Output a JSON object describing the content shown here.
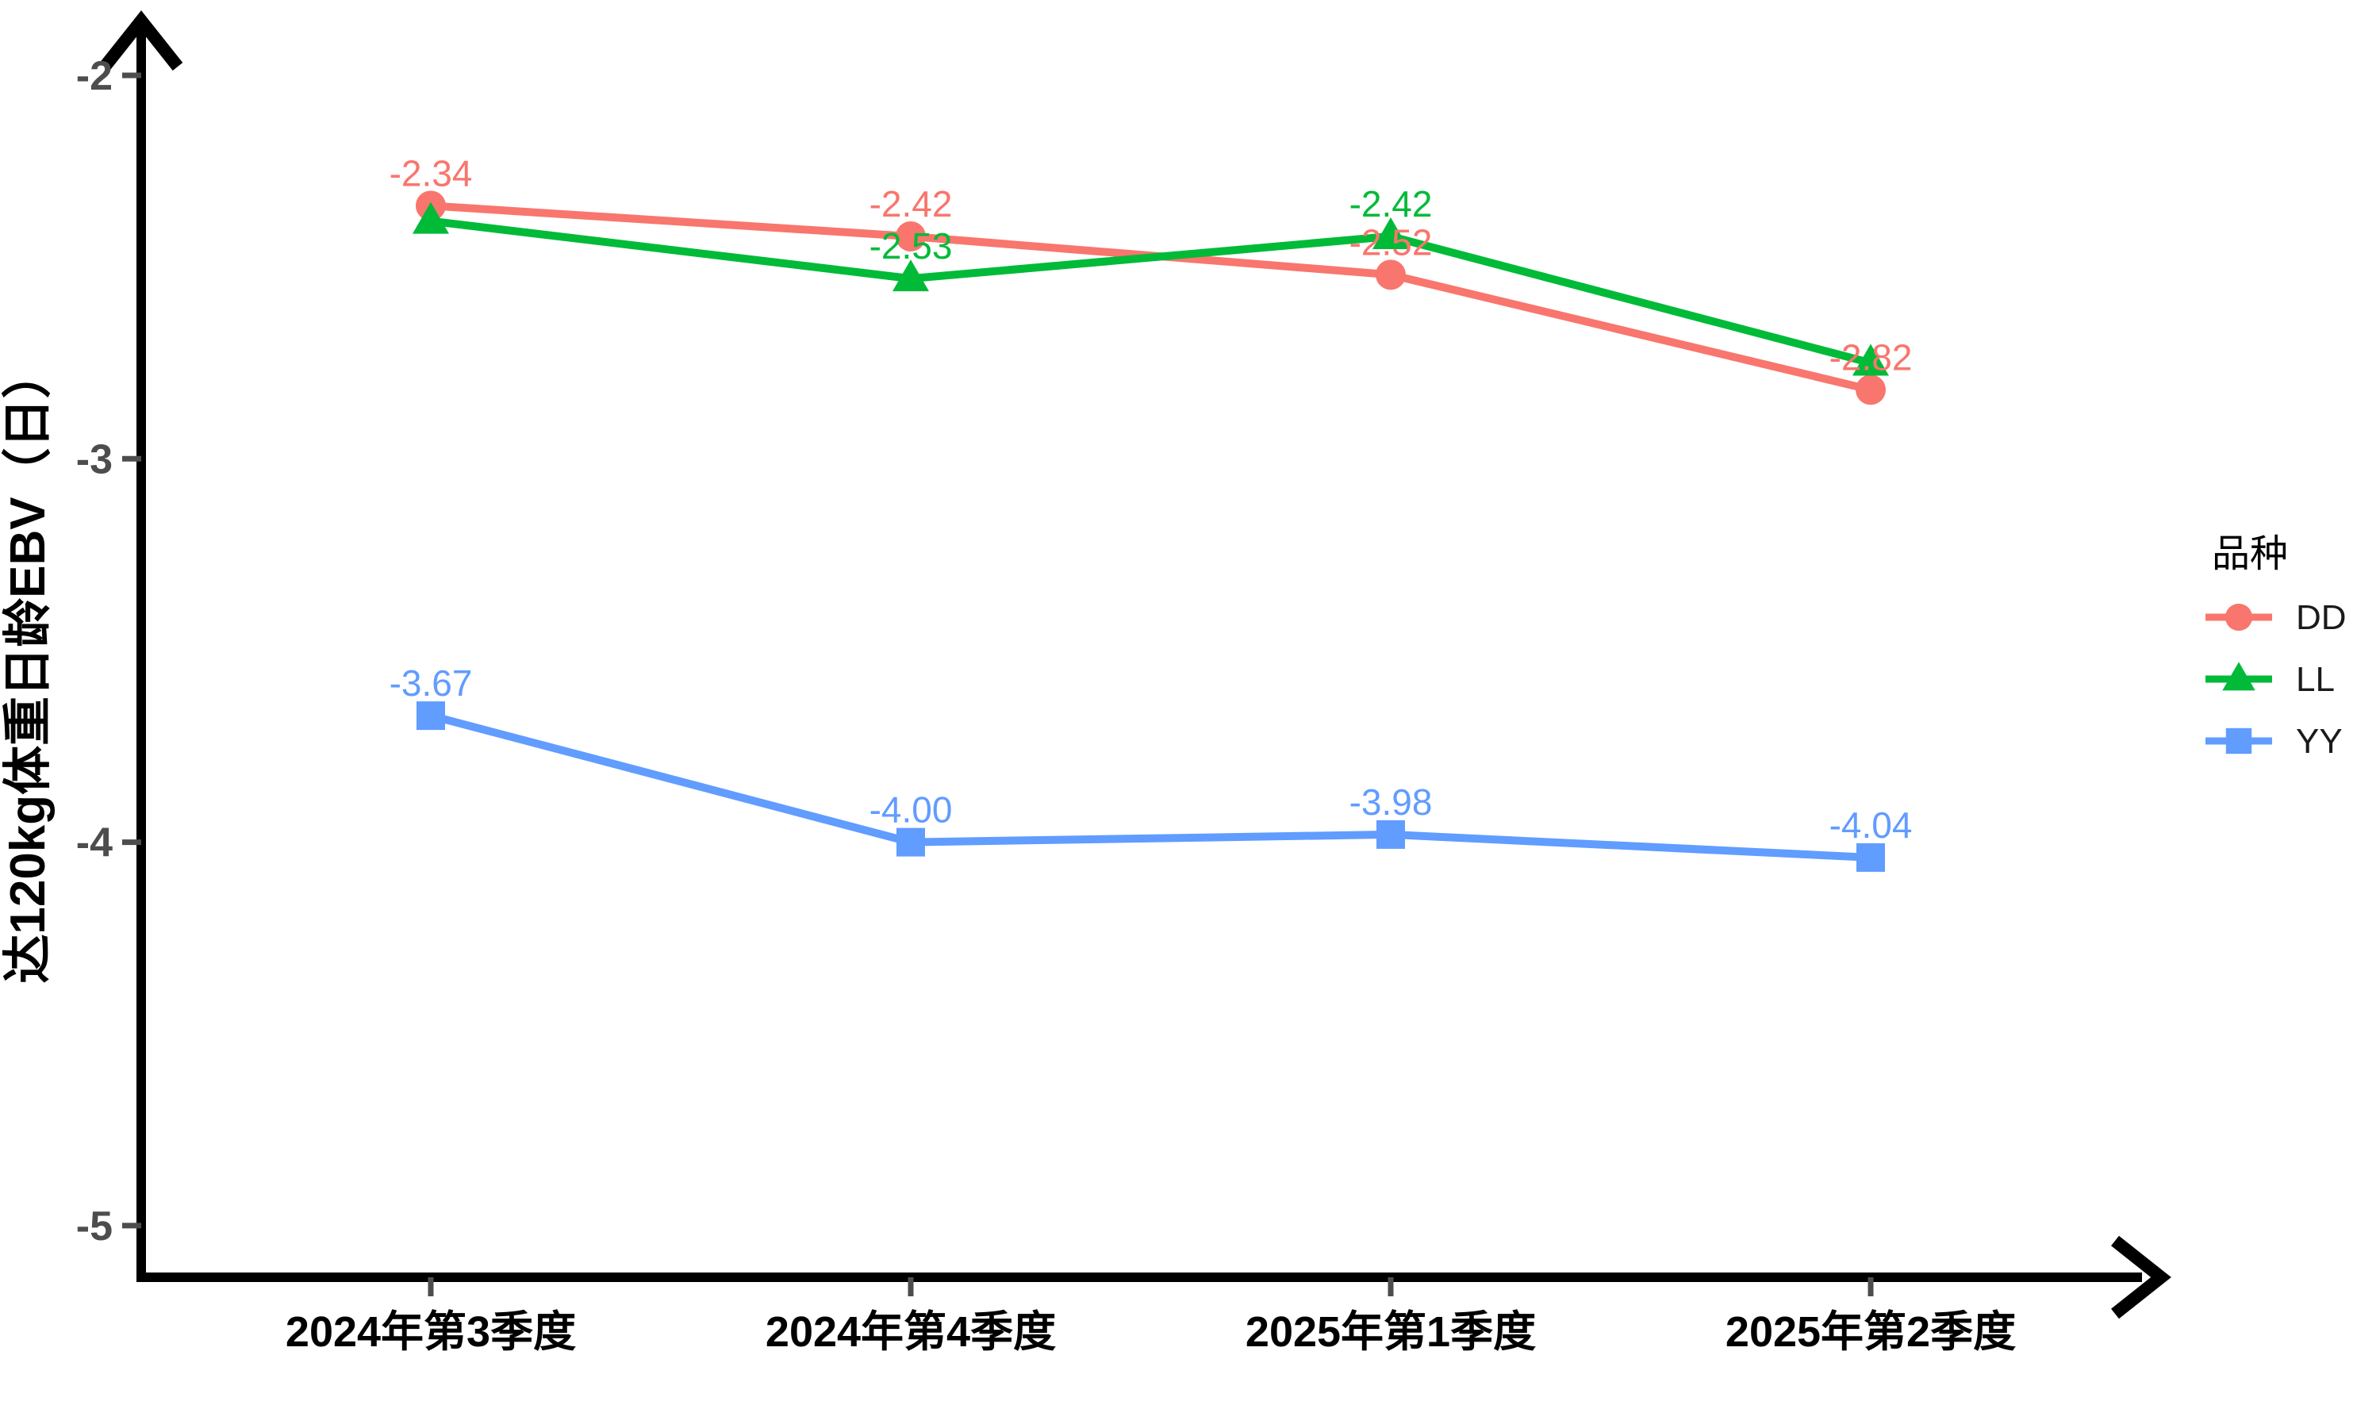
{
  "figure": {
    "background": "#ffffff"
  },
  "chart_data": {
    "type": "line",
    "title": "",
    "xlabel": "",
    "ylabel": "达120kg体重日龄EBV（日）",
    "categories": [
      "2024年第3季度",
      "2024年第4季度",
      "2025年第1季度",
      "2025年第2季度"
    ],
    "y_axis": {
      "ticks": [
        -2,
        -3,
        -4,
        -5
      ],
      "tick_labels": [
        "-2",
        "-3",
        "-4",
        "-5"
      ],
      "range": [
        -5.35,
        -1.8
      ]
    },
    "grid": false,
    "axis_color": "#000000",
    "tick_color": "#4d4d4d",
    "legend": {
      "title": "品种",
      "position": "right",
      "entries": [
        "DD",
        "LL",
        "YY"
      ]
    },
    "series": [
      {
        "name": "DD",
        "color": "#F8766D",
        "marker": "circle",
        "values": [
          -2.34,
          -2.42,
          -2.52,
          -2.82
        ],
        "point_labels": [
          "-2.34",
          "-2.42",
          "-2.52",
          "-2.82"
        ]
      },
      {
        "name": "LL",
        "color": "#00BA38",
        "marker": "triangle",
        "values": [
          -2.38,
          -2.53,
          -2.42,
          -2.75
        ],
        "point_labels": [
          "",
          "-2.53",
          "-2.42",
          ""
        ]
      },
      {
        "name": "YY",
        "color": "#619CFF",
        "marker": "square",
        "values": [
          -3.67,
          -4.0,
          -3.98,
          -4.04
        ],
        "point_labels": [
          "-3.67",
          "-4.00",
          "-3.98",
          "-4.04"
        ]
      }
    ]
  }
}
